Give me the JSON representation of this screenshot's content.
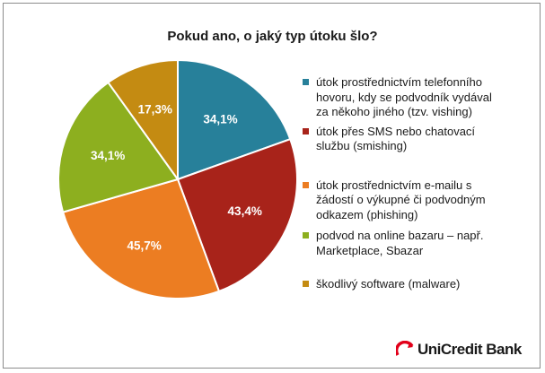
{
  "chart_data": {
    "type": "pie",
    "title": "Pokud ano, o jaký typ útoku šlo?",
    "slices": [
      {
        "name": "útok prostřednictvím telefonního hovoru, kdy se podvodník vydával za někoho jiného (tzv. vishing)",
        "value": 34.1,
        "label": "34,1%",
        "color": "#27809A"
      },
      {
        "name": "útok přes SMS nebo chatovací službu (smishing)",
        "value": 43.4,
        "label": "43,4%",
        "color": "#A8231A"
      },
      {
        "name": "útok prostřednictvím e-mailu s žádostí o výkupné či podvodným odkazem (phishing)",
        "value": 45.7,
        "label": "45,7%",
        "color": "#EC7D22"
      },
      {
        "name": "podvod na online bazaru – např. Marketplace, Sbazar",
        "value": 34.1,
        "label": "34,1%",
        "color": "#8DAF1F"
      },
      {
        "name": "škodlivý software (malware)",
        "value": 17.3,
        "label": "17,3%",
        "color": "#C48B12"
      }
    ],
    "legend_position": "right"
  },
  "legend": {
    "items": [
      {
        "lines": [
          "útok prostřednictvím telefonního",
          "hovoru, kdy se podvodník vydával",
          "za někoho jiného (tzv. vishing)"
        ]
      },
      {
        "lines": [
          "útok přes SMS nebo chatovací",
          "službu (smishing)"
        ]
      },
      {
        "lines": [
          "útok prostřednictvím e-mailu s",
          "žádostí o výkupné či podvodným",
          "odkazem (phishing)"
        ]
      },
      {
        "lines": [
          "podvod na online bazaru – např.",
          "Marketplace, Sbazar"
        ]
      },
      {
        "lines": [
          "škodlivý software (malware)"
        ]
      }
    ]
  },
  "logo": {
    "text": "UniCredit Bank",
    "color": "#E2001A"
  }
}
